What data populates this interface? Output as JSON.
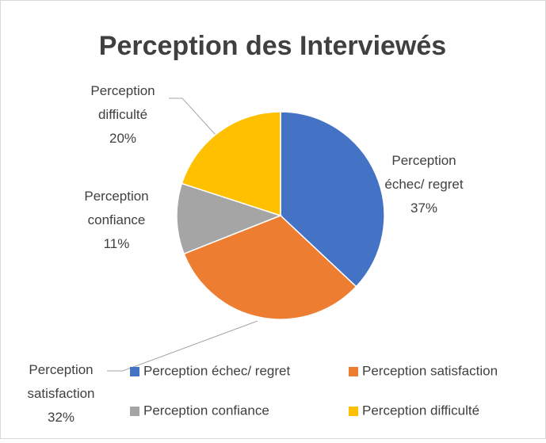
{
  "chart_data": {
    "type": "pie",
    "title": "Perception des Interviewés",
    "categories": [
      "Perception échec/ regret",
      "Perception satisfaction",
      "Perception confiance",
      "Perception difficulté"
    ],
    "values": [
      37,
      32,
      11,
      20
    ],
    "value_labels": [
      "37%",
      "32%",
      "11%",
      "20%"
    ],
    "colors": [
      "#4472c4",
      "#ed7d31",
      "#a5a5a5",
      "#ffc000"
    ],
    "legend": "bottom"
  }
}
